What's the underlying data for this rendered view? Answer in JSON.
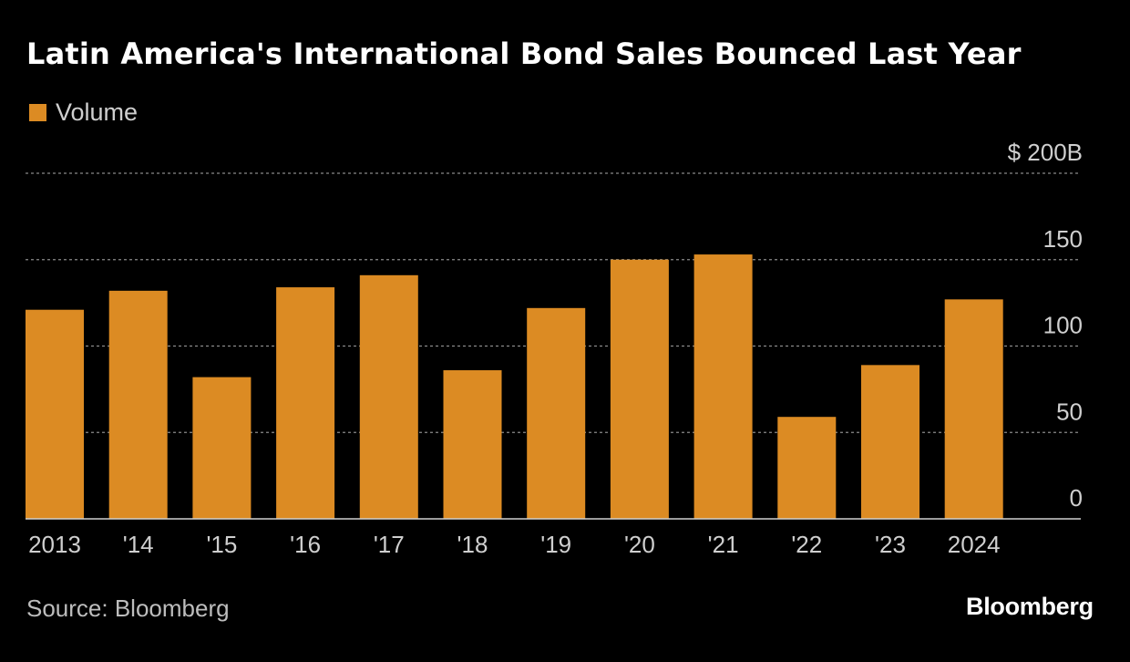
{
  "chart_data": {
    "type": "bar",
    "title": "Latin America's International Bond Sales Bounced Last Year",
    "legend": [
      {
        "label": "Volume",
        "color": "#dc8b23"
      }
    ],
    "categories": [
      "2013",
      "'14",
      "'15",
      "'16",
      "'17",
      "'18",
      "'19",
      "'20",
      "'21",
      "'22",
      "'23",
      "2024"
    ],
    "series": [
      {
        "name": "Volume",
        "values": [
          121,
          132,
          82,
          134,
          141,
          86,
          122,
          150,
          153,
          59,
          89,
          127
        ]
      }
    ],
    "ylim": [
      0,
      200
    ],
    "yticks": [
      0,
      50,
      100,
      150,
      200
    ],
    "ytick_labels": [
      "0",
      "50",
      "100",
      "150",
      "$ 200B"
    ],
    "xlabel": "",
    "ylabel": "",
    "grid": true
  },
  "footer": {
    "source": "Source: Bloomberg",
    "brand": "Bloomberg"
  },
  "colors": {
    "background": "#000000",
    "bar": "#dc8b23",
    "grid": "#8a8a8a",
    "axis": "#d0d0d0",
    "tick_text": "#cfcfcf"
  }
}
